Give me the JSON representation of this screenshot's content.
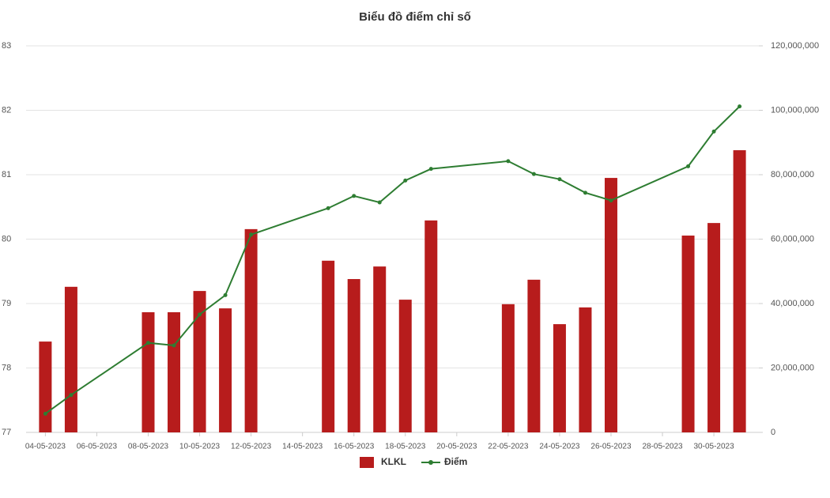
{
  "chart_data": {
    "type": "bar_line",
    "title": "Biểu đồ điểm chỉ số",
    "x": [
      "04-05-2023",
      "05-05-2023",
      "08-05-2023",
      "09-05-2023",
      "10-05-2023",
      "11-05-2023",
      "12-05-2023",
      "15-05-2023",
      "16-05-2023",
      "17-05-2023",
      "18-05-2023",
      "19-05-2023",
      "22-05-2023",
      "23-05-2023",
      "24-05-2023",
      "25-05-2023",
      "26-05-2023",
      "29-05-2023",
      "30-05-2023",
      "31-05-2023"
    ],
    "xticks": [
      "04-05-2023",
      "06-05-2023",
      "08-05-2023",
      "10-05-2023",
      "12-05-2023",
      "14-05-2023",
      "16-05-2023",
      "18-05-2023",
      "20-05-2023",
      "22-05-2023",
      "24-05-2023",
      "26-05-2023",
      "28-05-2023",
      "30-05-2023"
    ],
    "series": [
      {
        "name": "KLKL",
        "type": "bar",
        "axis": "y2",
        "color": "#b71c1c",
        "values": [
          28200000,
          45200000,
          37300000,
          37300000,
          43900000,
          38500000,
          63100000,
          53300000,
          47600000,
          51500000,
          41200000,
          65800000,
          39800000,
          47400000,
          33600000,
          38800000,
          79000000,
          61100000,
          65000000,
          87600000
        ]
      },
      {
        "name": "Điểm",
        "type": "line",
        "axis": "y",
        "color": "#2e7d32",
        "values": [
          77.29,
          77.58,
          78.39,
          78.35,
          78.83,
          79.13,
          80.07,
          80.48,
          80.67,
          80.57,
          80.91,
          81.09,
          81.21,
          81.01,
          80.93,
          80.72,
          80.6,
          81.13,
          81.67,
          82.06
        ]
      }
    ],
    "ylim": [
      77,
      83
    ],
    "yticks": [
      77,
      78,
      79,
      80,
      81,
      82,
      83
    ],
    "y2lim": [
      0,
      120000000
    ],
    "y2ticks": [
      0,
      {
        "value": 20000000,
        "label": "20,000,000"
      },
      {
        "value": 40000000,
        "label": "40,000,000"
      },
      {
        "value": 60000000,
        "label": "60,000,000"
      },
      {
        "value": 80000000,
        "label": "80,000,000"
      },
      {
        "value": 100000000,
        "label": "100,000,000"
      },
      {
        "value": 120000000,
        "label": "120,000,000"
      }
    ],
    "grid": true,
    "legend": "bottom"
  }
}
